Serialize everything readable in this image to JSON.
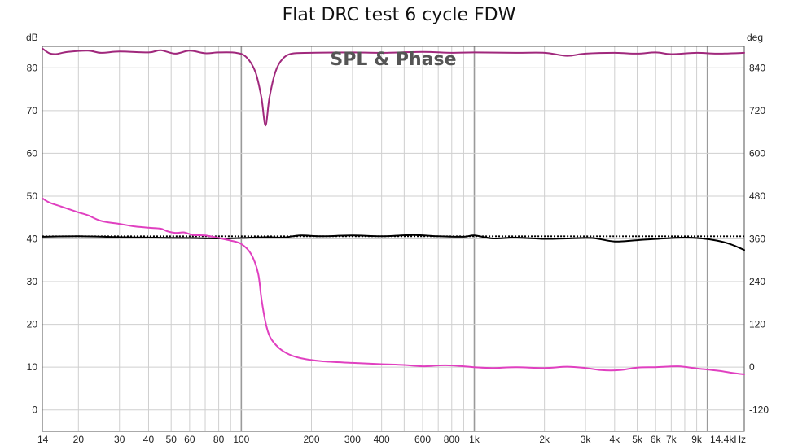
{
  "chart_data": {
    "type": "line",
    "title": "Flat DRC test 6 cycle FDW",
    "subtitle": "SPL & Phase",
    "y_left_unit": "dB",
    "y_right_unit": "deg",
    "x_scale": "log",
    "x_range_hz": [
      14,
      14400
    ],
    "y_left_range_db": [
      -5,
      85
    ],
    "y_right_range_deg": [
      -180,
      900
    ],
    "grid": true,
    "x_tick_labels": [
      {
        "v": 14,
        "t": "14"
      },
      {
        "v": 20,
        "t": "20"
      },
      {
        "v": 30,
        "t": "30"
      },
      {
        "v": 40,
        "t": "40"
      },
      {
        "v": 50,
        "t": "50"
      },
      {
        "v": 60,
        "t": "60"
      },
      {
        "v": 80,
        "t": "80"
      },
      {
        "v": 100,
        "t": "100"
      },
      {
        "v": 200,
        "t": "200"
      },
      {
        "v": 300,
        "t": "300"
      },
      {
        "v": 400,
        "t": "400"
      },
      {
        "v": 600,
        "t": "600"
      },
      {
        "v": 800,
        "t": "800"
      },
      {
        "v": 1000,
        "t": "1k"
      },
      {
        "v": 2000,
        "t": "2k"
      },
      {
        "v": 3000,
        "t": "3k"
      },
      {
        "v": 4000,
        "t": "4k"
      },
      {
        "v": 5000,
        "t": "5k"
      },
      {
        "v": 6000,
        "t": "6k"
      },
      {
        "v": 7000,
        "t": "7k"
      },
      {
        "v": 9000,
        "t": "9k"
      },
      {
        "v": 14400,
        "t": "14.4kHz"
      }
    ],
    "y_left_ticks": [
      {
        "v": 0,
        "t": "0"
      },
      {
        "v": 10,
        "t": "10"
      },
      {
        "v": 20,
        "t": "20"
      },
      {
        "v": 30,
        "t": "30"
      },
      {
        "v": 40,
        "t": "40"
      },
      {
        "v": 50,
        "t": "50"
      },
      {
        "v": 60,
        "t": "60"
      },
      {
        "v": 70,
        "t": "70"
      },
      {
        "v": 80,
        "t": "80"
      }
    ],
    "y_right_ticks": [
      {
        "v": -120,
        "t": "-120"
      },
      {
        "v": 0,
        "t": "0"
      },
      {
        "v": 120,
        "t": "120"
      },
      {
        "v": 240,
        "t": "240"
      },
      {
        "v": 360,
        "t": "360"
      },
      {
        "v": 480,
        "t": "480"
      },
      {
        "v": 600,
        "t": "600"
      },
      {
        "v": 720,
        "t": "720"
      },
      {
        "v": 840,
        "t": "840"
      }
    ],
    "series": [
      {
        "color": "#000000",
        "style": "dotted",
        "axis": "left",
        "points": [
          [
            14,
            40.6
          ],
          [
            14400,
            40.6
          ]
        ]
      },
      {
        "color": "#000000",
        "style": "solid",
        "axis": "left",
        "points": [
          [
            14,
            40.5
          ],
          [
            20,
            40.6
          ],
          [
            30,
            40.4
          ],
          [
            40,
            40.3
          ],
          [
            60,
            40.2
          ],
          [
            80,
            40.1
          ],
          [
            100,
            40.2
          ],
          [
            130,
            40.4
          ],
          [
            150,
            40.3
          ],
          [
            180,
            40.8
          ],
          [
            220,
            40.6
          ],
          [
            300,
            40.8
          ],
          [
            400,
            40.6
          ],
          [
            550,
            40.9
          ],
          [
            700,
            40.6
          ],
          [
            900,
            40.5
          ],
          [
            1000,
            40.8
          ],
          [
            1200,
            40.1
          ],
          [
            1500,
            40.3
          ],
          [
            2000,
            40.0
          ],
          [
            2500,
            40.1
          ],
          [
            3200,
            40.2
          ],
          [
            4000,
            39.4
          ],
          [
            5000,
            39.7
          ],
          [
            6500,
            40.1
          ],
          [
            8000,
            40.3
          ],
          [
            9500,
            40.1
          ],
          [
            11000,
            39.6
          ],
          [
            12500,
            38.8
          ],
          [
            14400,
            37.4
          ]
        ]
      },
      {
        "color": "#e040c0",
        "style": "solid",
        "axis": "left",
        "points": [
          [
            14,
            49.5
          ],
          [
            15,
            48.5
          ],
          [
            17,
            47.5
          ],
          [
            20,
            46.2
          ],
          [
            22,
            45.5
          ],
          [
            25,
            44.2
          ],
          [
            30,
            43.5
          ],
          [
            35,
            42.9
          ],
          [
            40,
            42.6
          ],
          [
            45,
            42.4
          ],
          [
            48,
            41.8
          ],
          [
            52,
            41.4
          ],
          [
            57,
            41.5
          ],
          [
            62,
            40.9
          ],
          [
            70,
            40.8
          ],
          [
            80,
            40.2
          ],
          [
            90,
            39.6
          ],
          [
            100,
            38.8
          ],
          [
            110,
            36.5
          ],
          [
            118,
            32.0
          ],
          [
            122,
            26.0
          ],
          [
            127,
            20.5
          ],
          [
            133,
            17.0
          ],
          [
            145,
            14.5
          ],
          [
            160,
            13.0
          ],
          [
            180,
            12.1
          ],
          [
            220,
            11.4
          ],
          [
            300,
            11.0
          ],
          [
            400,
            10.7
          ],
          [
            500,
            10.5
          ],
          [
            600,
            10.2
          ],
          [
            700,
            10.4
          ],
          [
            800,
            10.4
          ],
          [
            1000,
            10.0
          ],
          [
            1200,
            9.8
          ],
          [
            1500,
            10.0
          ],
          [
            2000,
            9.8
          ],
          [
            2500,
            10.1
          ],
          [
            3000,
            9.8
          ],
          [
            3500,
            9.3
          ],
          [
            4200,
            9.3
          ],
          [
            5000,
            9.9
          ],
          [
            6000,
            10.0
          ],
          [
            7500,
            10.2
          ],
          [
            9000,
            9.7
          ],
          [
            11000,
            9.2
          ],
          [
            13000,
            8.6
          ],
          [
            14400,
            8.3
          ]
        ]
      },
      {
        "color": "#a0287c",
        "style": "solid",
        "axis": "left",
        "points": [
          [
            14,
            84.5
          ],
          [
            15,
            83.4
          ],
          [
            16,
            83.2
          ],
          [
            18,
            83.7
          ],
          [
            22,
            84.0
          ],
          [
            25,
            83.5
          ],
          [
            30,
            83.8
          ],
          [
            40,
            83.6
          ],
          [
            45,
            84.1
          ],
          [
            52,
            83.3
          ],
          [
            60,
            84.0
          ],
          [
            70,
            83.4
          ],
          [
            80,
            83.6
          ],
          [
            95,
            83.5
          ],
          [
            105,
            82.5
          ],
          [
            115,
            79.0
          ],
          [
            122,
            73.0
          ],
          [
            127,
            66.5
          ],
          [
            132,
            73.0
          ],
          [
            140,
            79.0
          ],
          [
            150,
            82.0
          ],
          [
            165,
            83.3
          ],
          [
            200,
            83.5
          ],
          [
            300,
            83.6
          ],
          [
            400,
            83.5
          ],
          [
            600,
            83.7
          ],
          [
            800,
            83.5
          ],
          [
            1000,
            83.6
          ],
          [
            1500,
            83.5
          ],
          [
            2000,
            83.5
          ],
          [
            2500,
            82.8
          ],
          [
            3000,
            83.3
          ],
          [
            4000,
            83.5
          ],
          [
            5000,
            83.3
          ],
          [
            6000,
            83.6
          ],
          [
            7000,
            83.2
          ],
          [
            9000,
            83.5
          ],
          [
            11000,
            83.3
          ],
          [
            14400,
            83.5
          ]
        ]
      }
    ]
  }
}
